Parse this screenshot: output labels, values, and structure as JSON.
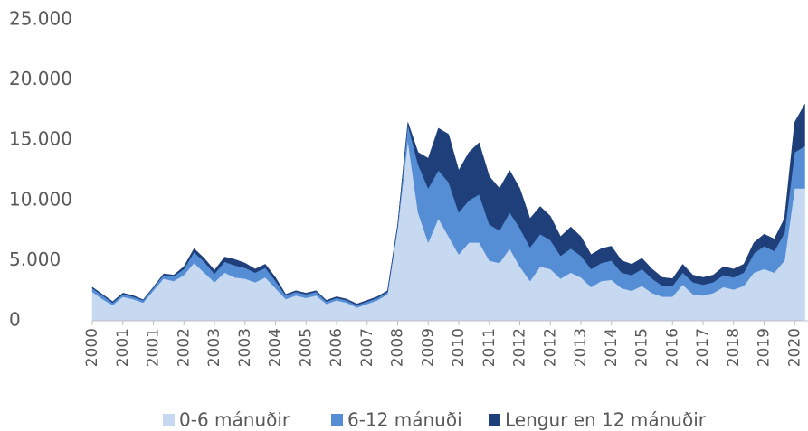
{
  "chart_data": {
    "type": "stacked_area",
    "categories": [
      "2000",
      null,
      null,
      "2001",
      null,
      null,
      "2001",
      null,
      null,
      "2002",
      null,
      null,
      "2003",
      null,
      null,
      "2003",
      null,
      null,
      "2004",
      null,
      null,
      "2005",
      null,
      null,
      "2006",
      null,
      null,
      "2007",
      null,
      null,
      "2008",
      null,
      null,
      "2009",
      null,
      null,
      "2010",
      null,
      null,
      "2011",
      null,
      null,
      "2012",
      null,
      null,
      "2012",
      null,
      null,
      "2013",
      null,
      null,
      "2014",
      null,
      null,
      "2015",
      null,
      null,
      "2016",
      null,
      null,
      "2017",
      null,
      null,
      "2018",
      null,
      null,
      "2019",
      null,
      null,
      "2020",
      null
    ],
    "series": [
      {
        "name": "0-6 mánuðir",
        "color": "#c6d9f1",
        "values": [
          2400,
          1800,
          1300,
          2000,
          1800,
          1500,
          2500,
          3500,
          3300,
          3800,
          4800,
          4000,
          3200,
          4000,
          3600,
          3500,
          3200,
          3600,
          2700,
          1800,
          2100,
          1900,
          2100,
          1400,
          1700,
          1500,
          1100,
          1400,
          1700,
          2200,
          7700,
          15000,
          9000,
          6500,
          8500,
          7000,
          5500,
          6500,
          6500,
          5000,
          4800,
          6000,
          4500,
          3300,
          4500,
          4300,
          3500,
          4000,
          3600,
          2800,
          3300,
          3400,
          2700,
          2500,
          2900,
          2300,
          2000,
          2000,
          3000,
          2200,
          2100,
          2300,
          2800,
          2600,
          2900,
          4000,
          4300,
          4000,
          5000,
          11000,
          11000
        ]
      },
      {
        "name": "6-12 mánuði",
        "color": "#558ed5",
        "values": [
          300,
          300,
          200,
          200,
          200,
          200,
          250,
          300,
          400,
          500,
          900,
          900,
          700,
          900,
          1000,
          900,
          800,
          800,
          600,
          300,
          300,
          300,
          300,
          200,
          200,
          200,
          200,
          200,
          200,
          200,
          200,
          1300,
          4000,
          4500,
          4000,
          4500,
          3500,
          3500,
          4000,
          3000,
          2700,
          3000,
          3200,
          2800,
          2700,
          2400,
          1900,
          2000,
          1800,
          1500,
          1500,
          1600,
          1300,
          1300,
          1400,
          1200,
          900,
          900,
          1000,
          1000,
          900,
          900,
          1000,
          1000,
          1100,
          1600,
          1900,
          1800,
          2300,
          3000,
          3500
        ]
      },
      {
        "name": "Lengur en 12 mánuðir",
        "color": "#1f3f7a",
        "values": [
          100,
          100,
          100,
          100,
          100,
          50,
          50,
          100,
          100,
          200,
          300,
          300,
          300,
          400,
          500,
          400,
          300,
          300,
          300,
          100,
          100,
          100,
          100,
          100,
          100,
          100,
          100,
          100,
          100,
          100,
          100,
          200,
          1000,
          2500,
          3500,
          4000,
          3500,
          4000,
          4300,
          4000,
          3500,
          3500,
          3300,
          2400,
          2300,
          2000,
          1600,
          1800,
          1600,
          1200,
          1200,
          1200,
          1000,
          900,
          900,
          800,
          700,
          600,
          700,
          600,
          600,
          600,
          700,
          700,
          700,
          900,
          1000,
          1000,
          1200,
          2500,
          3500
        ]
      }
    ],
    "ylim": [
      0,
      25000
    ],
    "yticks": [
      {
        "value": 0,
        "label": "0"
      },
      {
        "value": 5000,
        "label": "5.000"
      },
      {
        "value": 10000,
        "label": "10.000"
      },
      {
        "value": 15000,
        "label": "15.000"
      },
      {
        "value": 20000,
        "label": "20.000"
      },
      {
        "value": 25000,
        "label": "25.000"
      }
    ],
    "grid": false
  }
}
